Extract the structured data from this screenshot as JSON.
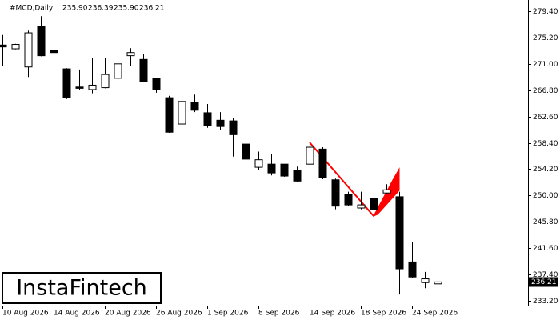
{
  "chart_data": {
    "type": "candlestick",
    "header": {
      "symbol": "#MCD,Daily",
      "open": "235.90",
      "high": "236.39",
      "low": "235.90",
      "close": "236.21"
    },
    "categories": [
      "10 Aug 2026",
      null,
      null,
      null,
      "14 Aug 2026",
      null,
      null,
      null,
      "20 Aug 2026",
      null,
      null,
      null,
      "26 Aug 2026",
      null,
      null,
      null,
      "1 Sep 2026",
      null,
      null,
      null,
      "8 Sep 2026",
      null,
      null,
      null,
      "14 Sep 2026",
      null,
      null,
      null,
      "18 Sep 2026",
      null,
      null,
      null,
      "24 Sep 2026",
      null,
      null
    ],
    "open": [
      274.0,
      273.4,
      270.5,
      277.0,
      273.1,
      270.2,
      267.3,
      266.9,
      267.2,
      268.7,
      272.3,
      271.7,
      268.7,
      265.6,
      261.4,
      264.9,
      263.2,
      262.0,
      261.9,
      258.2,
      254.5,
      255.0,
      255.0,
      254.0,
      255.0,
      257.4,
      252.5,
      250.2,
      248.0,
      249.5,
      250.4,
      249.8,
      239.4,
      236.1,
      235.9
    ],
    "high": [
      275.6,
      274.2,
      276.3,
      278.6,
      275.4,
      270.3,
      270.1,
      272.0,
      272.0,
      271.2,
      273.5,
      272.6,
      268.7,
      265.9,
      265.2,
      266.1,
      264.6,
      263.3,
      262.3,
      258.3,
      257.0,
      256.6,
      255.0,
      254.6,
      258.5,
      257.7,
      252.7,
      250.6,
      250.6,
      250.6,
      251.8,
      250.6,
      242.6,
      237.8,
      236.39
    ],
    "low": [
      270.6,
      273.3,
      268.9,
      272.2,
      271.0,
      265.4,
      266.9,
      266.3,
      267.1,
      268.4,
      270.7,
      268.2,
      266.4,
      260.0,
      260.5,
      263.3,
      260.8,
      260.5,
      256.2,
      255.7,
      254.1,
      253.2,
      253.0,
      252.2,
      255.0,
      252.6,
      247.8,
      248.3,
      247.8,
      247.6,
      250.2,
      234.2,
      236.8,
      235.2,
      235.9
    ],
    "close": [
      273.7,
      274.1,
      275.95,
      272.3,
      272.8,
      265.6,
      267.1,
      267.6,
      269.3,
      271.0,
      272.8,
      268.2,
      266.9,
      260.1,
      265.0,
      263.6,
      261.2,
      261.0,
      259.7,
      255.8,
      255.7,
      253.6,
      253.1,
      252.3,
      257.7,
      252.8,
      248.3,
      248.5,
      248.5,
      247.8,
      250.9,
      238.3,
      237.0,
      236.7,
      236.21
    ],
    "up_color": "#ffffff",
    "down_color": "#000000",
    "ylim": [
      232.43,
      280.55
    ],
    "yticks": [
      {
        "value": 233.2,
        "label": "233.20"
      },
      {
        "value": 237.4,
        "label": "237.40"
      },
      {
        "value": 241.6,
        "label": "241.60"
      },
      {
        "value": 245.8,
        "label": "245.80"
      },
      {
        "value": 250.0,
        "label": "250.00"
      },
      {
        "value": 254.2,
        "label": "254.20"
      },
      {
        "value": 258.4,
        "label": "258.40"
      },
      {
        "value": 262.6,
        "label": "262.60"
      },
      {
        "value": 266.8,
        "label": "266.80"
      },
      {
        "value": 271.0,
        "label": "271.00"
      },
      {
        "value": 275.2,
        "label": "275.20"
      },
      {
        "value": 279.4,
        "label": "279.40"
      }
    ],
    "last_price": {
      "value": 236.21,
      "label": "236.21"
    },
    "watermark": "InstaFintech"
  }
}
